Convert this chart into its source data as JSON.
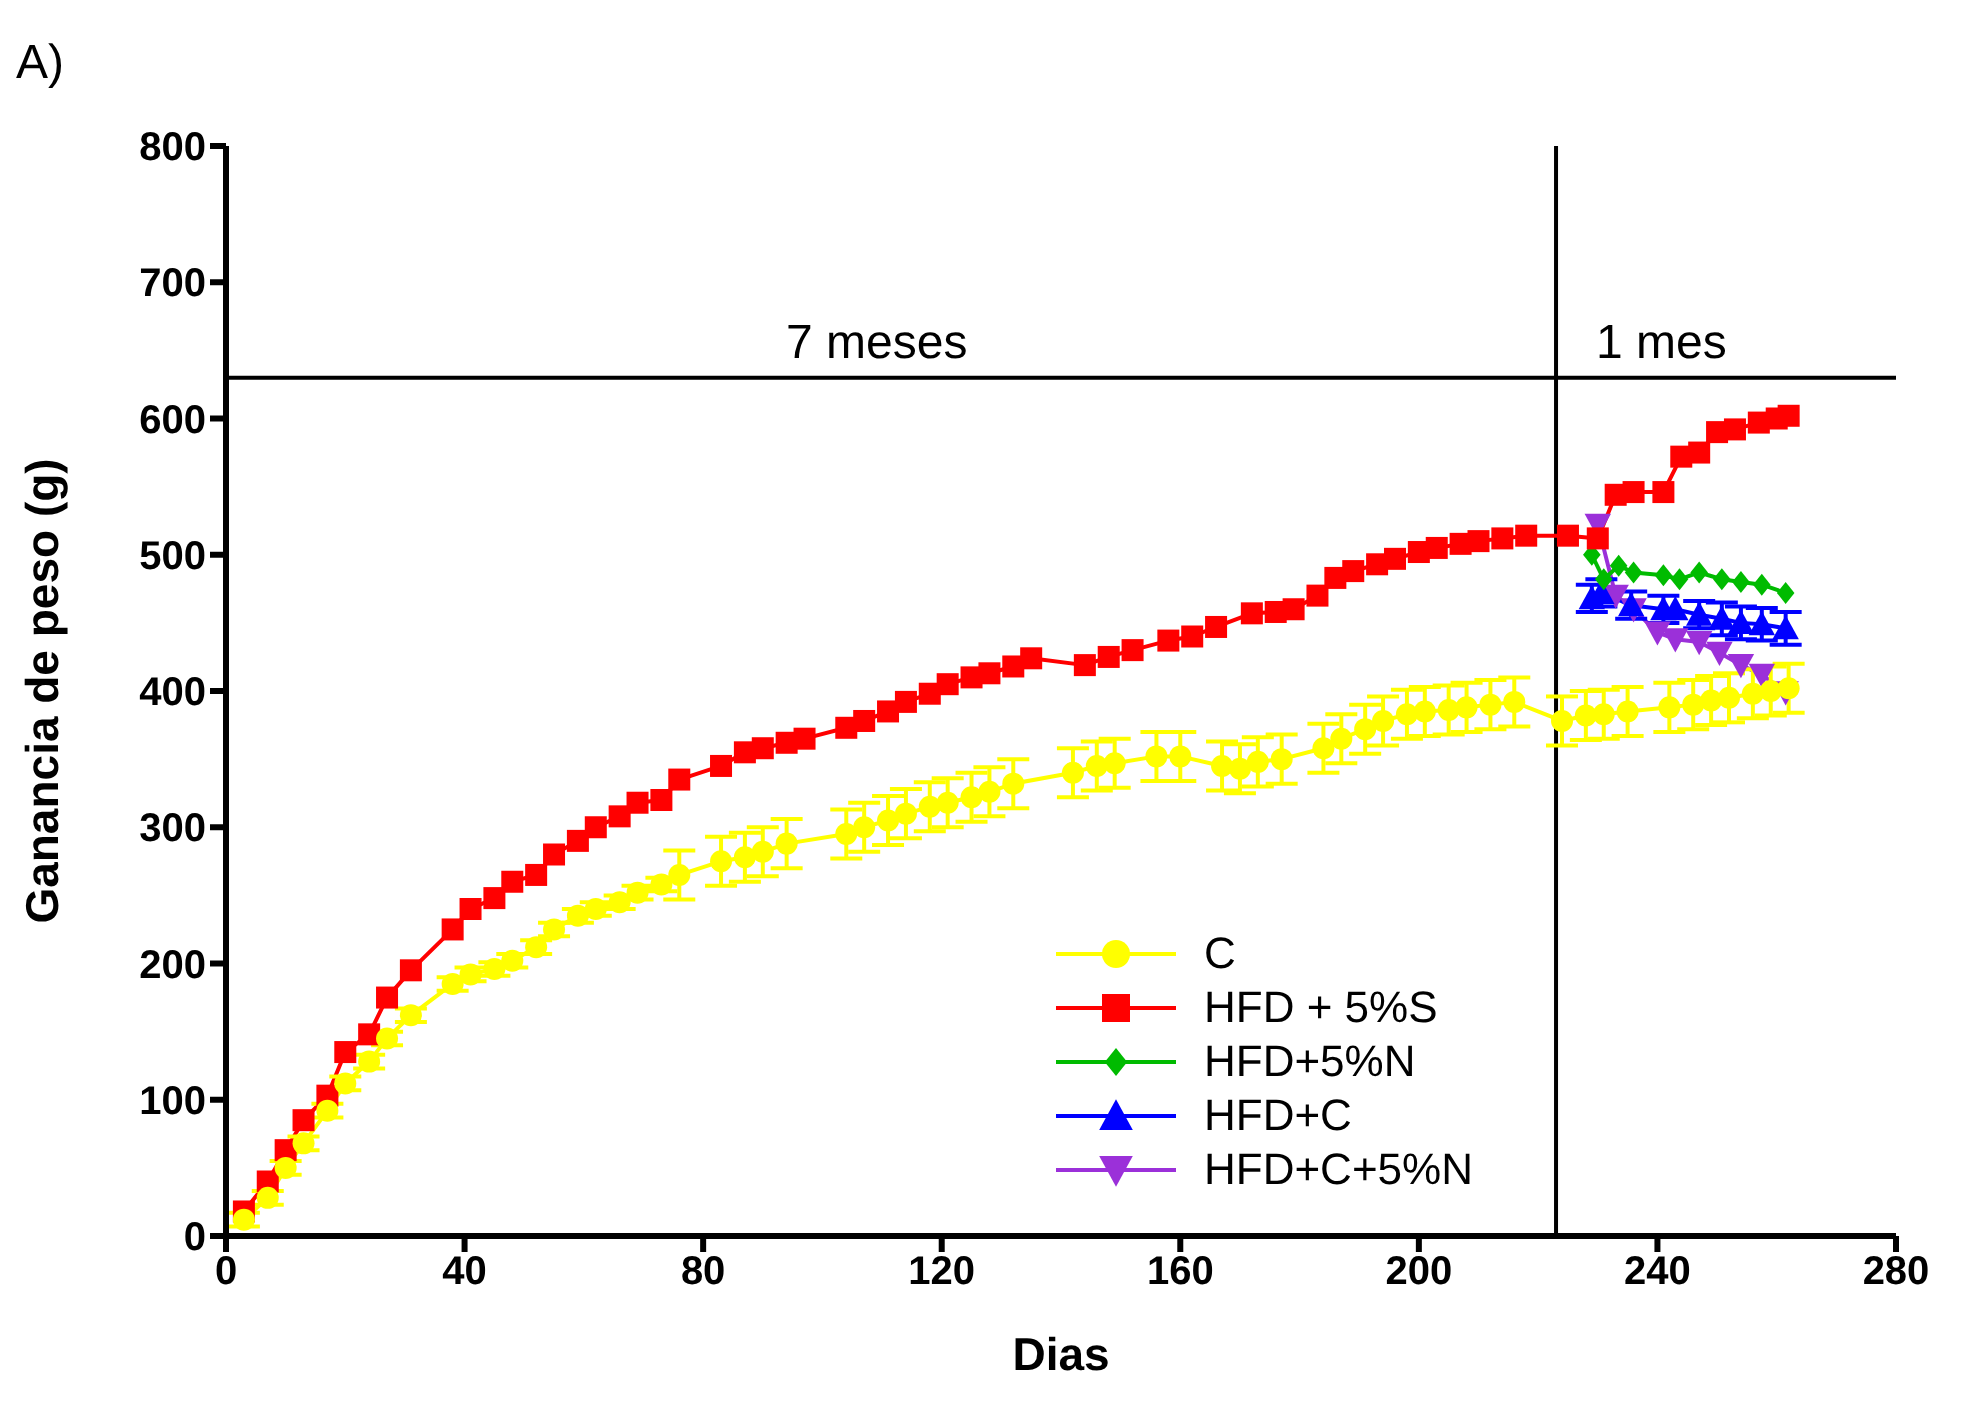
{
  "chart_data": {
    "type": "line",
    "xlabel": "Dias",
    "ylabel": "Ganancia de peso (g)",
    "xlim": [
      0,
      280
    ],
    "xticks": [
      0,
      40,
      80,
      120,
      160,
      200,
      240,
      280
    ],
    "ylim": [
      0,
      800
    ],
    "yticks": [
      0,
      100,
      200,
      300,
      400,
      500,
      600,
      700,
      800
    ],
    "grid": false,
    "legend": "bottom right",
    "line_style": "solid",
    "annotations": [
      "A)",
      "7 meses",
      "1 mes"
    ],
    "ref_lines": [
      {
        "axis": "x",
        "value": 223,
        "color": "#000000"
      },
      {
        "axis": "y",
        "value": 630,
        "color": "#000000"
      }
    ],
    "series": [
      {
        "name": "C",
        "color": "#ffff00",
        "marker": "circle",
        "x": [
          3,
          7,
          10,
          13,
          17,
          20,
          24,
          27,
          31,
          38,
          41,
          45,
          48,
          52,
          55,
          59,
          62,
          66,
          69,
          73,
          76,
          83,
          87,
          90,
          94,
          104,
          107,
          111,
          114,
          118,
          121,
          125,
          128,
          132,
          142,
          146,
          149,
          156,
          160,
          167,
          170,
          173,
          177,
          184,
          187,
          191,
          194,
          198,
          201,
          205,
          208,
          212,
          216,
          224,
          228,
          231,
          235,
          242,
          246,
          249,
          252,
          256,
          259,
          262
        ],
        "values": [
          12,
          28,
          50,
          68,
          92,
          112,
          128,
          145,
          162,
          185,
          192,
          196,
          202,
          212,
          225,
          235,
          240,
          245,
          252,
          258,
          265,
          275,
          278,
          282,
          288,
          295,
          300,
          305,
          310,
          315,
          318,
          322,
          326,
          332,
          340,
          345,
          347,
          352,
          352,
          345,
          343,
          348,
          350,
          358,
          365,
          372,
          378,
          383,
          385,
          386,
          388,
          390,
          392,
          378,
          382,
          383,
          385,
          388,
          390,
          393,
          395,
          398,
          400,
          402
        ],
        "errors": [
          5,
          5,
          5,
          5,
          5,
          5,
          5,
          5,
          5,
          5,
          5,
          5,
          5,
          5,
          5,
          5,
          5,
          5,
          5,
          5,
          18,
          18,
          18,
          18,
          18,
          18,
          18,
          18,
          18,
          18,
          18,
          18,
          18,
          18,
          18,
          18,
          18,
          18,
          18,
          18,
          18,
          18,
          18,
          18,
          18,
          18,
          18,
          18,
          18,
          18,
          18,
          18,
          18,
          18,
          18,
          18,
          18,
          18,
          18,
          18,
          18,
          18,
          18,
          18
        ]
      },
      {
        "name": "HFD + 5%S",
        "color": "#ff0000",
        "marker": "square",
        "x": [
          3,
          7,
          10,
          13,
          17,
          20,
          24,
          27,
          31,
          38,
          41,
          45,
          48,
          52,
          55,
          59,
          62,
          66,
          69,
          73,
          76,
          83,
          87,
          90,
          94,
          97,
          104,
          107,
          111,
          114,
          118,
          121,
          125,
          128,
          132,
          135,
          144,
          148,
          152,
          158,
          162,
          166,
          172,
          176,
          179,
          183,
          186,
          189,
          193,
          196,
          200,
          203,
          207,
          210,
          214,
          218,
          225,
          230,
          233,
          236,
          241,
          244,
          247,
          250,
          253,
          257,
          260,
          262
        ],
        "values": [
          18,
          40,
          63,
          85,
          103,
          135,
          148,
          175,
          195,
          225,
          240,
          248,
          260,
          265,
          280,
          290,
          300,
          308,
          318,
          320,
          335,
          345,
          355,
          358,
          362,
          365,
          373,
          378,
          385,
          392,
          398,
          405,
          410,
          413,
          418,
          424,
          419,
          425,
          430,
          437,
          440,
          447,
          457,
          458,
          460,
          470,
          483,
          488,
          493,
          497,
          502,
          505,
          508,
          510,
          512,
          514,
          514,
          512,
          544,
          546,
          546,
          572,
          575,
          590,
          592,
          597,
          600,
          602
        ]
      },
      {
        "name": "HFD+5%N",
        "color": "#00bb00",
        "marker": "diamond",
        "x": [
          229,
          231,
          233.5,
          236,
          241,
          243.7,
          247,
          250.8,
          254,
          257.5,
          261.5
        ],
        "values": [
          500,
          482,
          492,
          487,
          485,
          482,
          487,
          482,
          480,
          478,
          472
        ]
      },
      {
        "name": "HFD+C",
        "color": "#0000ff",
        "marker": "triangle",
        "x": [
          229,
          230.6,
          235.6,
          241,
          243,
          247,
          250.8,
          254,
          257.5,
          261.5
        ],
        "values": [
          468,
          472,
          463,
          460,
          460,
          456,
          453,
          450,
          449,
          446
        ],
        "errors": [
          10,
          10,
          10,
          10,
          null,
          10,
          12,
          12,
          12,
          12
        ]
      },
      {
        "name": "HFD+C+5%N",
        "color": "#9b30d9",
        "marker": "triangle-down",
        "x": [
          230,
          233,
          236,
          240,
          243,
          247,
          250.4,
          254,
          257.5,
          261.5
        ],
        "values": [
          522,
          470,
          460,
          443,
          438,
          436,
          428,
          419,
          412,
          399
        ]
      }
    ]
  }
}
